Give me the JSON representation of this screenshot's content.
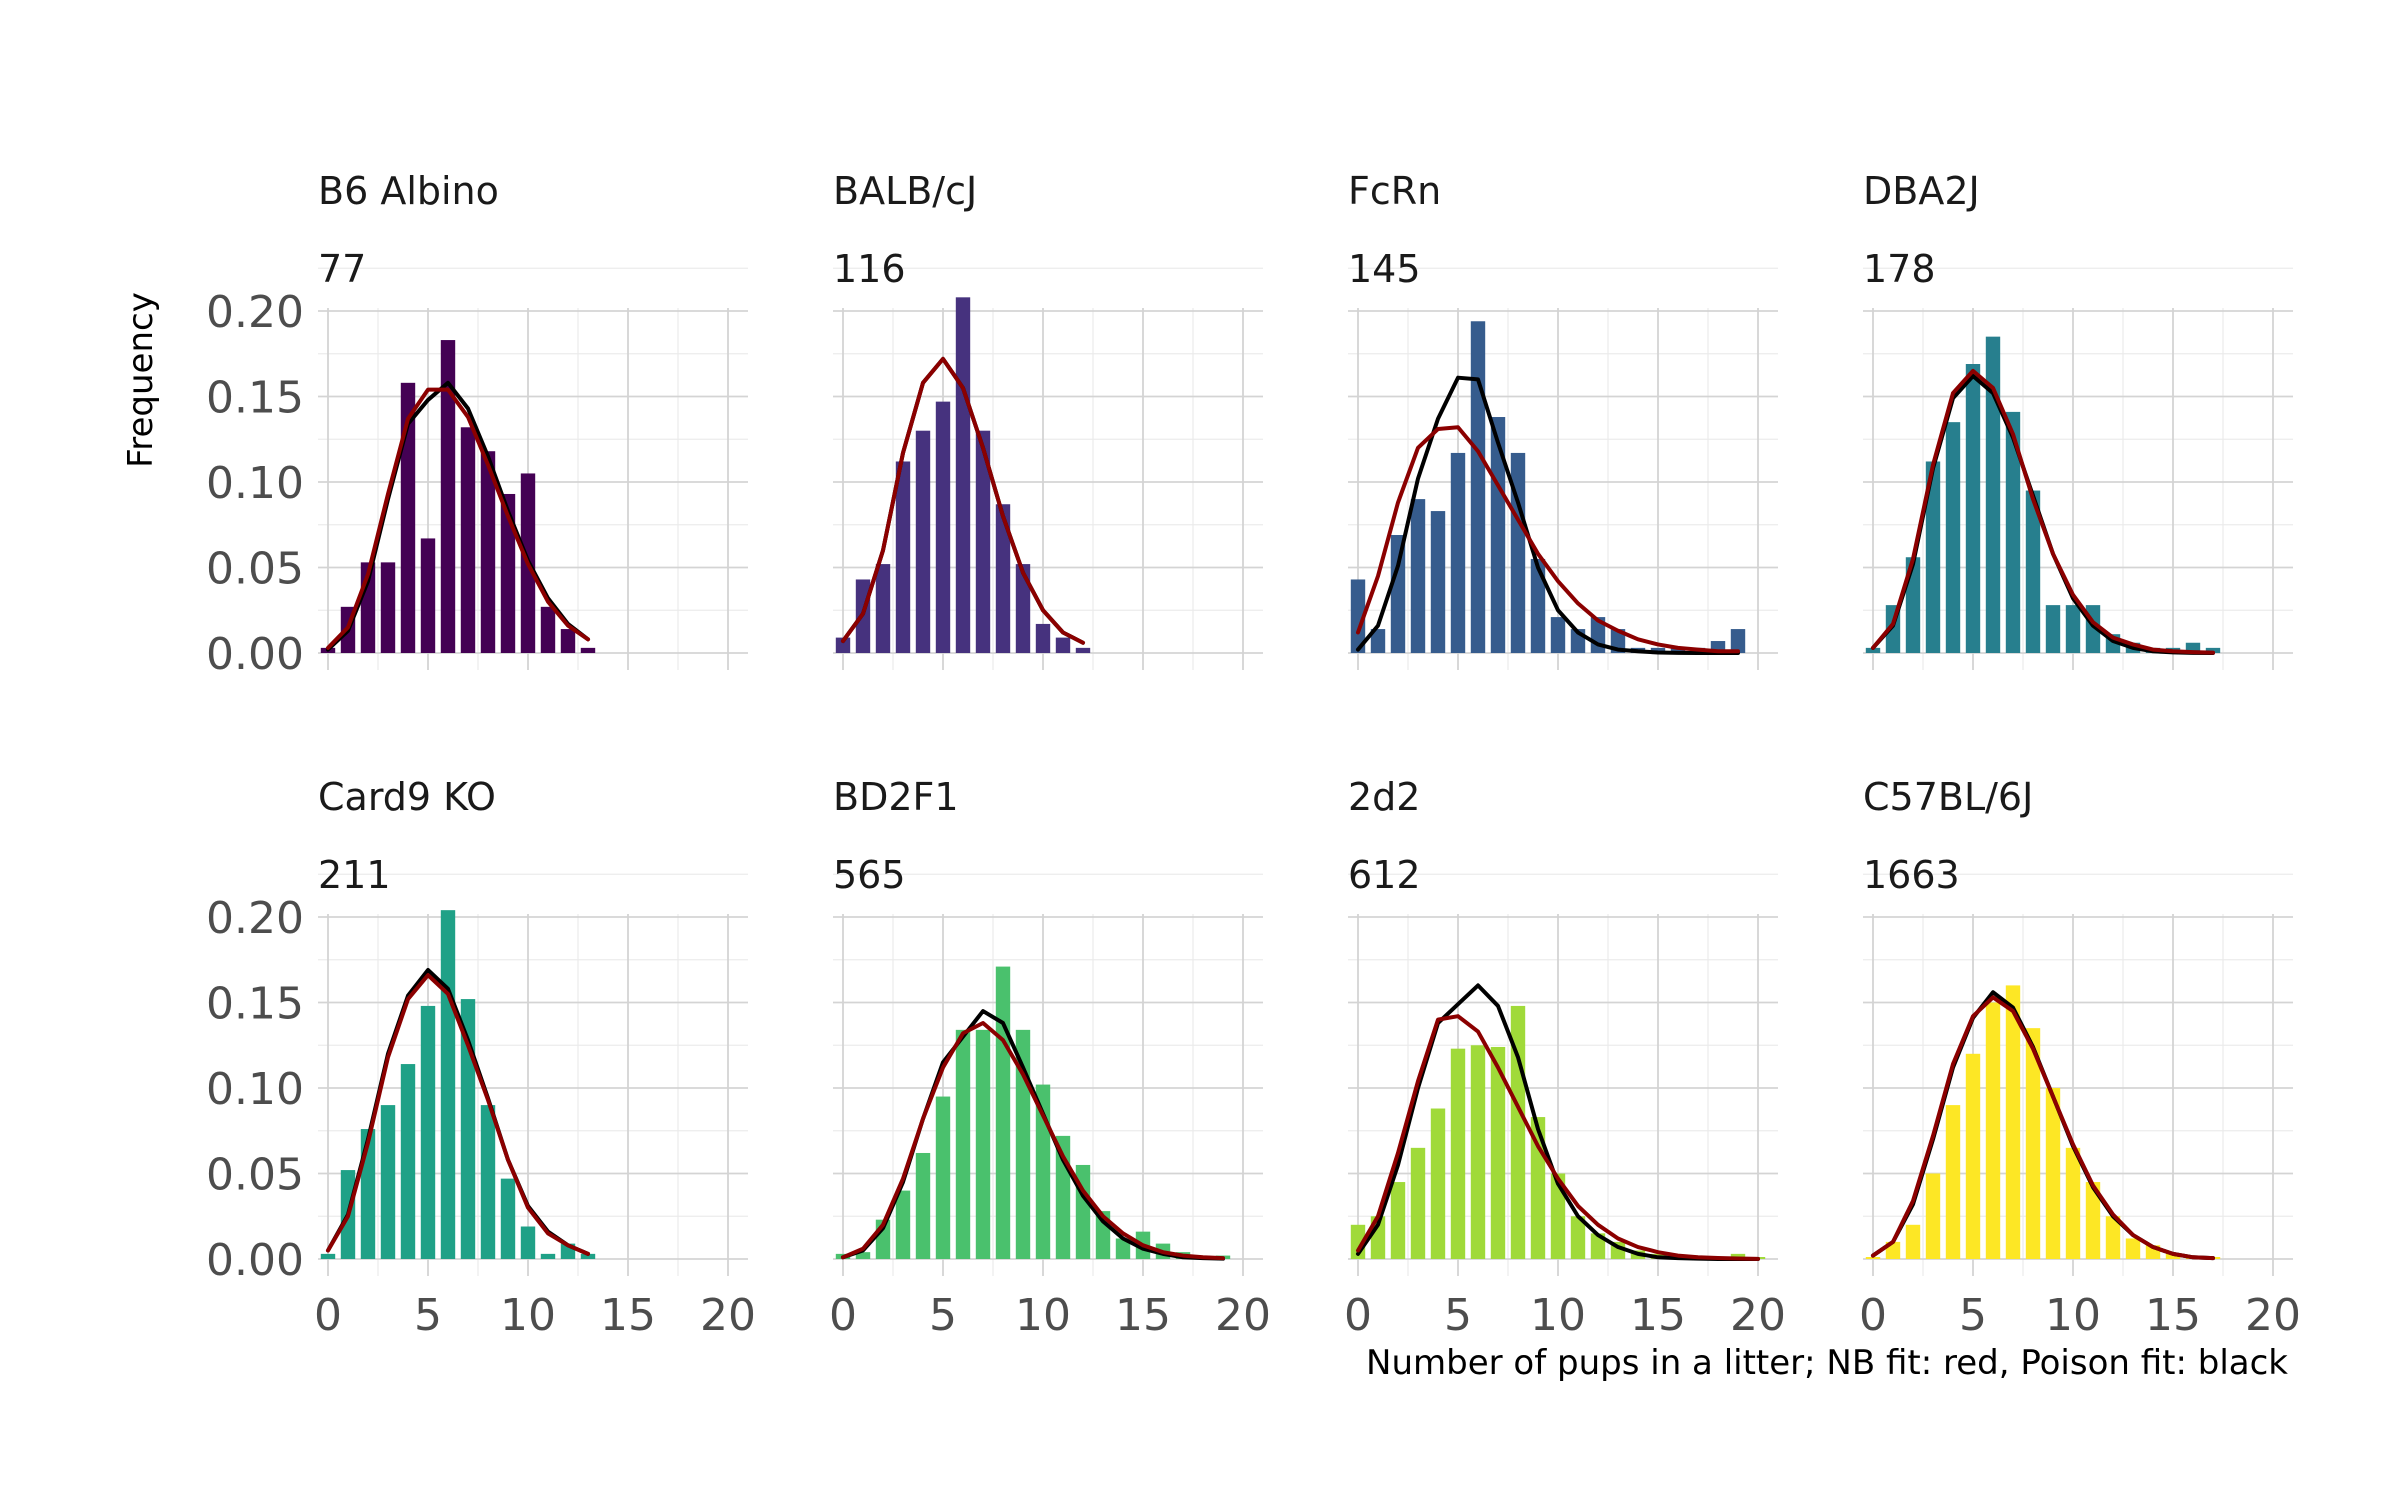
{
  "chart_data": {
    "type": "bar",
    "title": "",
    "xlabel": "Number of pups in a litter;  NB fit: red, Poison fit: black",
    "ylabel": "Frequency",
    "xlim": [
      -0.5,
      21
    ],
    "ylim": [
      0,
      0.2
    ],
    "x_ticks": [
      0,
      5,
      10,
      15,
      20
    ],
    "y_ticks": [
      "0.00",
      "0.05",
      "0.10",
      "0.15",
      "0.20"
    ],
    "grid": true,
    "fit_colors": {
      "nb": "#8b0000",
      "poisson": "#000000"
    },
    "panels": [
      {
        "strain": "B6 Albino",
        "count": "77",
        "color": "#440154",
        "x": [
          0,
          1,
          2,
          3,
          4,
          5,
          6,
          7,
          8,
          9,
          10,
          11,
          12,
          13
        ],
        "bars": [
          0.003,
          0.027,
          0.053,
          0.053,
          0.158,
          0.067,
          0.183,
          0.132,
          0.118,
          0.093,
          0.105,
          0.027,
          0.014,
          0.003
        ],
        "nb_fit": [
          0.003,
          0.015,
          0.046,
          0.093,
          0.137,
          0.154,
          0.154,
          0.138,
          0.11,
          0.08,
          0.052,
          0.03,
          0.016,
          0.008
        ],
        "poisson_fit": [
          0.002,
          0.013,
          0.042,
          0.09,
          0.134,
          0.148,
          0.158,
          0.143,
          0.115,
          0.083,
          0.054,
          0.032,
          0.017,
          0.008
        ]
      },
      {
        "strain": "BALB/cJ",
        "count": "116",
        "color": "#46327e",
        "x": [
          0,
          1,
          2,
          3,
          4,
          5,
          6,
          7,
          8,
          9,
          10,
          11,
          12
        ],
        "bars": [
          0.009,
          0.043,
          0.052,
          0.112,
          0.13,
          0.147,
          0.208,
          0.13,
          0.087,
          0.052,
          0.017,
          0.009,
          0.003
        ],
        "nb_fit": [
          0.007,
          0.023,
          0.06,
          0.117,
          0.158,
          0.172,
          0.155,
          0.12,
          0.08,
          0.047,
          0.025,
          0.012,
          0.006
        ],
        "poisson_fit": [
          0.007,
          0.023,
          0.06,
          0.117,
          0.158,
          0.172,
          0.155,
          0.12,
          0.08,
          0.047,
          0.025,
          0.012,
          0.006
        ]
      },
      {
        "strain": "FcRn",
        "count": "145",
        "color": "#365c8d",
        "x": [
          0,
          1,
          2,
          3,
          4,
          5,
          6,
          7,
          8,
          9,
          10,
          11,
          12,
          13,
          14,
          15,
          16,
          17,
          18,
          19
        ],
        "bars": [
          0.043,
          0.014,
          0.069,
          0.09,
          0.083,
          0.117,
          0.194,
          0.138,
          0.117,
          0.055,
          0.021,
          0.014,
          0.021,
          0.014,
          0.003,
          0.003,
          0.003,
          0.003,
          0.007,
          0.014
        ],
        "nb_fit": [
          0.012,
          0.045,
          0.088,
          0.12,
          0.131,
          0.132,
          0.118,
          0.098,
          0.078,
          0.058,
          0.042,
          0.029,
          0.019,
          0.013,
          0.008,
          0.005,
          0.003,
          0.002,
          0.001,
          0.001
        ],
        "poisson_fit": [
          0.002,
          0.016,
          0.051,
          0.102,
          0.137,
          0.161,
          0.16,
          0.123,
          0.088,
          0.05,
          0.025,
          0.012,
          0.005,
          0.002,
          0.001,
          0.0003,
          0.0001,
          0,
          0,
          0
        ]
      },
      {
        "strain": "DBA2J",
        "count": "178",
        "color": "#277f8e",
        "x": [
          0,
          1,
          2,
          3,
          4,
          5,
          6,
          7,
          8,
          9,
          10,
          11,
          12,
          13,
          14,
          15,
          16,
          17
        ],
        "bars": [
          0.003,
          0.028,
          0.056,
          0.112,
          0.135,
          0.169,
          0.185,
          0.141,
          0.095,
          0.028,
          0.028,
          0.028,
          0.011,
          0.006,
          0.003,
          0.003,
          0.006,
          0.003
        ],
        "nb_fit": [
          0.003,
          0.017,
          0.055,
          0.11,
          0.152,
          0.165,
          0.155,
          0.128,
          0.09,
          0.058,
          0.034,
          0.018,
          0.009,
          0.005,
          0.002,
          0.001,
          0.0005,
          0.0002
        ],
        "poisson_fit": [
          0.003,
          0.016,
          0.052,
          0.108,
          0.149,
          0.162,
          0.152,
          0.126,
          0.092,
          0.058,
          0.032,
          0.016,
          0.007,
          0.003,
          0.001,
          0.0004,
          0.0001,
          0
        ]
      },
      {
        "strain": "Card9 KO",
        "count": "211",
        "color": "#1fa187",
        "x": [
          0,
          1,
          2,
          3,
          4,
          5,
          6,
          7,
          8,
          9,
          10,
          11,
          12,
          13
        ],
        "bars": [
          0.003,
          0.052,
          0.076,
          0.09,
          0.114,
          0.148,
          0.204,
          0.152,
          0.09,
          0.047,
          0.019,
          0.003,
          0.009,
          0.003
        ],
        "nb_fit": [
          0.005,
          0.025,
          0.068,
          0.118,
          0.152,
          0.166,
          0.155,
          0.125,
          0.093,
          0.058,
          0.03,
          0.015,
          0.008,
          0.003
        ],
        "poisson_fit": [
          0.005,
          0.026,
          0.07,
          0.12,
          0.154,
          0.169,
          0.158,
          0.128,
          0.094,
          0.058,
          0.031,
          0.016,
          0.008,
          0.003
        ]
      },
      {
        "strain": "BD2F1",
        "count": "565",
        "color": "#4ac16d",
        "x": [
          0,
          1,
          2,
          3,
          4,
          5,
          6,
          7,
          8,
          9,
          10,
          11,
          12,
          13,
          14,
          15,
          16,
          17,
          18,
          19
        ],
        "bars": [
          0.003,
          0.004,
          0.023,
          0.04,
          0.062,
          0.095,
          0.134,
          0.134,
          0.171,
          0.134,
          0.102,
          0.072,
          0.055,
          0.028,
          0.012,
          0.016,
          0.009,
          0.004,
          0.002,
          0.002
        ],
        "nb_fit": [
          0.001,
          0.006,
          0.02,
          0.047,
          0.082,
          0.112,
          0.132,
          0.138,
          0.128,
          0.108,
          0.084,
          0.06,
          0.04,
          0.025,
          0.015,
          0.008,
          0.004,
          0.002,
          0.001,
          0.0005
        ],
        "poisson_fit": [
          0.001,
          0.005,
          0.018,
          0.045,
          0.082,
          0.115,
          0.13,
          0.145,
          0.138,
          0.112,
          0.085,
          0.058,
          0.037,
          0.022,
          0.012,
          0.006,
          0.003,
          0.001,
          0.0005,
          0.0002
        ]
      },
      {
        "strain": "2d2",
        "count": "612",
        "color": "#a0da39",
        "x": [
          0,
          1,
          2,
          3,
          4,
          5,
          6,
          7,
          8,
          9,
          10,
          11,
          12,
          13,
          14,
          15,
          16,
          17,
          18,
          19,
          20
        ],
        "bars": [
          0.02,
          0.025,
          0.045,
          0.065,
          0.088,
          0.123,
          0.125,
          0.124,
          0.148,
          0.083,
          0.05,
          0.025,
          0.015,
          0.01,
          0.005,
          0.003,
          0.002,
          0.001,
          0.001,
          0.003,
          0.001
        ],
        "nb_fit": [
          0.005,
          0.025,
          0.062,
          0.104,
          0.14,
          0.142,
          0.133,
          0.112,
          0.089,
          0.066,
          0.047,
          0.031,
          0.02,
          0.012,
          0.007,
          0.004,
          0.002,
          0.001,
          0.0006,
          0.0003,
          0.0001
        ],
        "poisson_fit": [
          0.003,
          0.02,
          0.055,
          0.1,
          0.138,
          0.149,
          0.16,
          0.148,
          0.118,
          0.076,
          0.044,
          0.025,
          0.014,
          0.007,
          0.003,
          0.001,
          0.0005,
          0.0002,
          0,
          0,
          0
        ]
      },
      {
        "strain": "C57BL/6J",
        "count": "1663",
        "color": "#fde725",
        "x": [
          0,
          1,
          2,
          3,
          4,
          5,
          6,
          7,
          8,
          9,
          10,
          11,
          12,
          13,
          14,
          15,
          16,
          17
        ],
        "bars": [
          0.001,
          0.01,
          0.02,
          0.05,
          0.09,
          0.12,
          0.15,
          0.16,
          0.135,
          0.1,
          0.065,
          0.045,
          0.025,
          0.012,
          0.008,
          0.003,
          0.001,
          0.001
        ],
        "nb_fit": [
          0.002,
          0.01,
          0.034,
          0.072,
          0.114,
          0.142,
          0.153,
          0.145,
          0.123,
          0.095,
          0.067,
          0.043,
          0.026,
          0.014,
          0.007,
          0.003,
          0.001,
          0.0005
        ],
        "poisson_fit": [
          0.002,
          0.01,
          0.032,
          0.07,
          0.112,
          0.141,
          0.156,
          0.147,
          0.124,
          0.095,
          0.066,
          0.042,
          0.025,
          0.014,
          0.007,
          0.003,
          0.001,
          0.0005
        ]
      }
    ]
  }
}
